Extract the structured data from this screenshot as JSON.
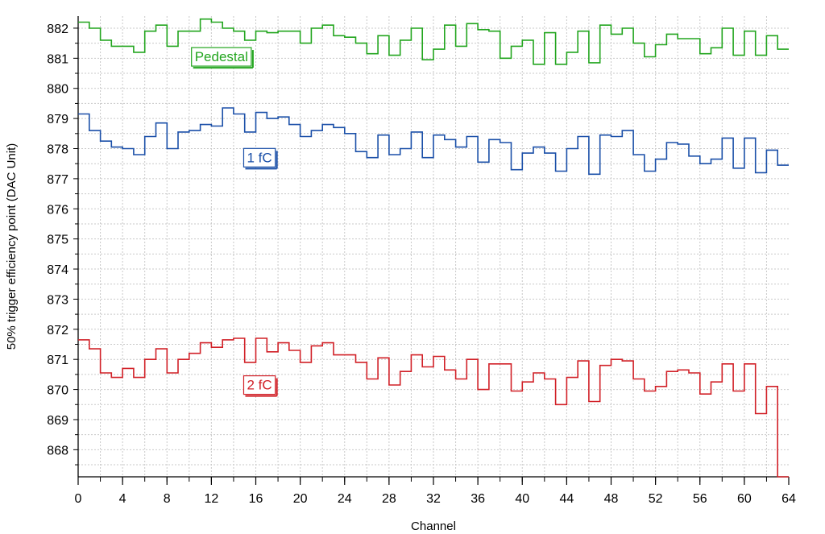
{
  "chart_data": {
    "type": "line",
    "step": true,
    "title": "",
    "xlabel": "Channel",
    "ylabel": "50% trigger efficiency point (DAC Unit)",
    "xlim": [
      0,
      64
    ],
    "ylim": [
      867.1,
      882.4
    ],
    "xticks": [
      0,
      4,
      8,
      12,
      16,
      20,
      24,
      28,
      32,
      36,
      40,
      44,
      48,
      52,
      56,
      60,
      64
    ],
    "yticks": [
      868,
      869,
      870,
      871,
      872,
      873,
      874,
      875,
      876,
      877,
      878,
      879,
      880,
      881,
      882
    ],
    "grid": true,
    "x": [
      0,
      1,
      2,
      3,
      4,
      5,
      6,
      7,
      8,
      9,
      10,
      11,
      12,
      13,
      14,
      15,
      16,
      17,
      18,
      19,
      20,
      21,
      22,
      23,
      24,
      25,
      26,
      27,
      28,
      29,
      30,
      31,
      32,
      33,
      34,
      35,
      36,
      37,
      38,
      39,
      40,
      41,
      42,
      43,
      44,
      45,
      46,
      47,
      48,
      49,
      50,
      51,
      52,
      53,
      54,
      55,
      56,
      57,
      58,
      59,
      60,
      61,
      62,
      63
    ],
    "series": [
      {
        "name": "Pedestal",
        "color": "#22a51e",
        "values": [
          882.2,
          882.0,
          881.6,
          881.4,
          881.4,
          881.2,
          881.9,
          882.1,
          881.4,
          881.9,
          881.9,
          882.3,
          882.2,
          882.0,
          881.9,
          881.6,
          881.9,
          881.85,
          881.9,
          881.9,
          881.5,
          882.0,
          882.1,
          881.75,
          881.7,
          881.5,
          881.15,
          881.75,
          881.1,
          881.6,
          882.0,
          880.95,
          881.3,
          882.1,
          881.4,
          882.15,
          881.95,
          881.9,
          881.0,
          881.4,
          881.6,
          880.8,
          881.85,
          880.8,
          881.2,
          881.9,
          880.85,
          882.1,
          881.8,
          882.0,
          881.5,
          881.05,
          881.45,
          881.8,
          881.65,
          881.65,
          881.15,
          881.35,
          882.0,
          881.1,
          881.9,
          881.1,
          881.75,
          881.3
        ]
      },
      {
        "name": "1 fC",
        "color": "#1a4fa8",
        "values": [
          879.15,
          878.6,
          878.25,
          878.05,
          878.0,
          877.8,
          878.4,
          878.85,
          878.0,
          878.55,
          878.6,
          878.8,
          878.75,
          879.35,
          879.15,
          878.55,
          879.2,
          879.0,
          879.05,
          878.8,
          878.4,
          878.6,
          878.8,
          878.7,
          878.5,
          877.9,
          877.7,
          878.45,
          877.8,
          878.0,
          878.55,
          877.7,
          878.45,
          878.3,
          878.05,
          878.4,
          877.55,
          878.3,
          878.2,
          877.3,
          877.85,
          878.05,
          877.85,
          877.25,
          878.0,
          878.4,
          877.15,
          878.45,
          878.4,
          878.6,
          877.8,
          877.25,
          877.65,
          878.2,
          878.15,
          877.75,
          877.5,
          877.65,
          878.35,
          877.35,
          878.35,
          877.2,
          877.95,
          877.45
        ]
      },
      {
        "name": "2 fC",
        "color": "#d12027",
        "values": [
          871.65,
          871.35,
          870.55,
          870.4,
          870.7,
          870.4,
          871.0,
          871.35,
          870.55,
          871.0,
          871.2,
          871.55,
          871.4,
          871.65,
          871.7,
          870.9,
          871.7,
          871.25,
          871.55,
          871.3,
          870.9,
          871.45,
          871.55,
          871.15,
          871.15,
          870.9,
          870.35,
          871.05,
          870.15,
          870.6,
          871.15,
          870.75,
          871.1,
          870.65,
          870.35,
          871.0,
          870.0,
          870.85,
          870.85,
          869.95,
          870.25,
          870.55,
          870.35,
          869.5,
          870.4,
          870.95,
          869.6,
          870.8,
          871.0,
          870.95,
          870.35,
          869.95,
          870.1,
          870.6,
          870.65,
          870.55,
          869.85,
          870.25,
          870.85,
          869.95,
          870.85,
          869.2,
          870.1,
          867.1
        ]
      }
    ],
    "annotations": [
      {
        "text": "Pedestal",
        "series": "Pedestal",
        "x": 10.5,
        "y": 880.9,
        "color": "#22a51e"
      },
      {
        "text": "1 fC",
        "series": "1 fC",
        "x": 15.2,
        "y": 877.55,
        "color": "#1a4fa8"
      },
      {
        "text": "2 fC",
        "series": "2 fC",
        "x": 15.2,
        "y": 870.0,
        "color": "#d12027"
      }
    ]
  }
}
